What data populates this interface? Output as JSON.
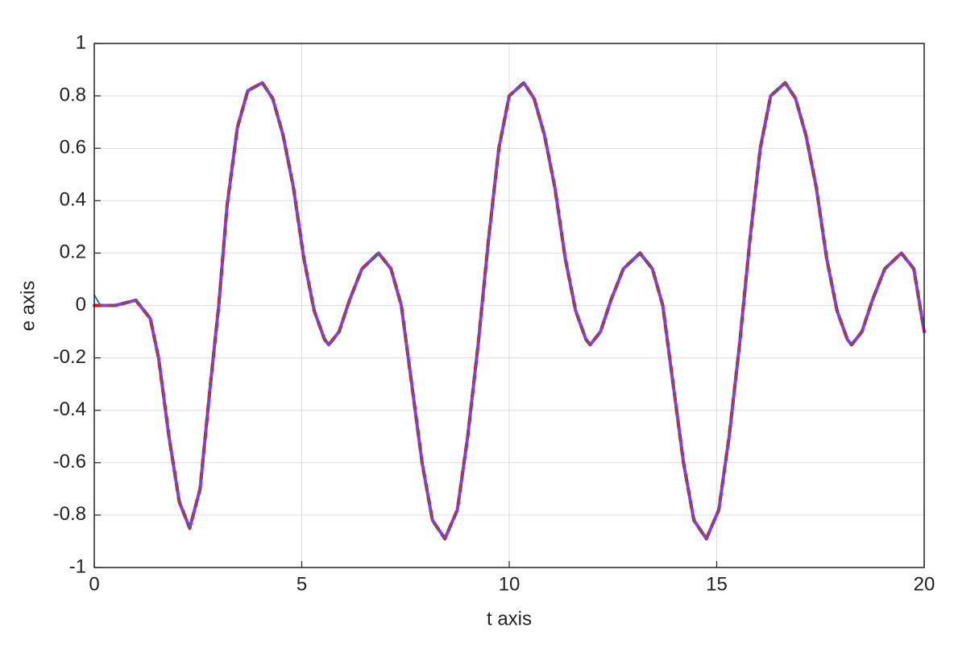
{
  "chart_data": {
    "type": "line",
    "xlabel": "t axis",
    "ylabel": "e axis",
    "x": [
      0,
      0.15,
      0.5,
      1.0,
      1.35,
      1.55,
      1.8,
      2.05,
      2.3,
      2.55,
      2.8,
      3.0,
      3.2,
      3.45,
      3.7,
      4.05,
      4.3,
      4.55,
      4.8,
      5.05,
      5.3,
      5.55,
      5.65,
      5.9,
      6.15,
      6.45,
      6.85,
      7.15,
      7.4,
      7.65,
      7.9,
      8.15,
      8.45,
      8.75,
      9.0,
      9.25,
      9.5,
      9.75,
      10.0,
      10.35,
      10.6,
      10.85,
      11.1,
      11.35,
      11.6,
      11.85,
      11.95,
      12.2,
      12.45,
      12.75,
      13.15,
      13.45,
      13.7,
      13.95,
      14.2,
      14.45,
      14.75,
      15.05,
      15.3,
      15.55,
      15.8,
      16.05,
      16.3,
      16.65,
      16.9,
      17.15,
      17.4,
      17.65,
      17.9,
      18.15,
      18.25,
      18.5,
      18.75,
      19.05,
      19.45,
      19.75,
      20
    ],
    "series": [
      {
        "color": "#ff00ff",
        "linestyle": "solid",
        "linewidth": 4,
        "values": [
          0,
          0,
          0,
          0.02,
          -0.05,
          -0.2,
          -0.5,
          -0.75,
          -0.85,
          -0.7,
          -0.3,
          0.0,
          0.38,
          0.68,
          0.82,
          0.85,
          0.79,
          0.65,
          0.45,
          0.18,
          -0.02,
          -0.13,
          -0.15,
          -0.1,
          0.02,
          0.14,
          0.2,
          0.14,
          0.0,
          -0.3,
          -0.6,
          -0.82,
          -0.89,
          -0.78,
          -0.5,
          -0.15,
          0.25,
          0.6,
          0.8,
          0.85,
          0.79,
          0.65,
          0.45,
          0.18,
          -0.02,
          -0.13,
          -0.15,
          -0.1,
          0.02,
          0.14,
          0.2,
          0.14,
          0.0,
          -0.3,
          -0.6,
          -0.82,
          -0.89,
          -0.78,
          -0.5,
          -0.15,
          0.25,
          0.6,
          0.8,
          0.85,
          0.79,
          0.65,
          0.45,
          0.18,
          -0.02,
          -0.13,
          -0.15,
          -0.1,
          0.02,
          0.14,
          0.2,
          0.14,
          -0.1
        ]
      },
      {
        "color": "#ff0000",
        "linestyle": "dashed",
        "linewidth": 4,
        "values": [
          0,
          0,
          0,
          0.02,
          -0.05,
          -0.2,
          -0.5,
          -0.75,
          -0.85,
          -0.7,
          -0.3,
          0.0,
          0.38,
          0.68,
          0.82,
          0.85,
          0.79,
          0.65,
          0.45,
          0.18,
          -0.02,
          -0.13,
          -0.15,
          -0.1,
          0.02,
          0.14,
          0.2,
          0.14,
          0.0,
          -0.3,
          -0.6,
          -0.82,
          -0.89,
          -0.78,
          -0.5,
          -0.15,
          0.25,
          0.6,
          0.8,
          0.85,
          0.79,
          0.65,
          0.45,
          0.18,
          -0.02,
          -0.13,
          -0.15,
          -0.1,
          0.02,
          0.14,
          0.2,
          0.14,
          0.0,
          -0.3,
          -0.6,
          -0.82,
          -0.89,
          -0.78,
          -0.5,
          -0.15,
          0.25,
          0.6,
          0.8,
          0.85,
          0.79,
          0.65,
          0.45,
          0.18,
          -0.02,
          -0.13,
          -0.15,
          -0.1,
          0.02,
          0.14,
          0.2,
          0.14,
          -0.1
        ]
      },
      {
        "color": "#1f77b4",
        "linestyle": "solid",
        "linewidth": 2,
        "values": [
          0.04,
          0,
          0,
          0.02,
          -0.05,
          -0.2,
          -0.5,
          -0.75,
          -0.85,
          -0.7,
          -0.3,
          0.0,
          0.38,
          0.68,
          0.82,
          0.85,
          0.79,
          0.65,
          0.45,
          0.18,
          -0.02,
          -0.13,
          -0.15,
          -0.1,
          0.02,
          0.14,
          0.2,
          0.14,
          0.0,
          -0.3,
          -0.6,
          -0.82,
          -0.89,
          -0.78,
          -0.5,
          -0.15,
          0.25,
          0.6,
          0.8,
          0.85,
          0.79,
          0.65,
          0.45,
          0.18,
          -0.02,
          -0.13,
          -0.15,
          -0.1,
          0.02,
          0.14,
          0.2,
          0.14,
          0.0,
          -0.3,
          -0.6,
          -0.82,
          -0.89,
          -0.78,
          -0.5,
          -0.15,
          0.25,
          0.6,
          0.8,
          0.85,
          0.79,
          0.65,
          0.45,
          0.18,
          -0.02,
          -0.13,
          -0.15,
          -0.1,
          0.02,
          0.14,
          0.2,
          0.14,
          -0.1
        ]
      }
    ],
    "xlim": [
      0,
      20
    ],
    "xticks": [
      0,
      5,
      10,
      15,
      20
    ],
    "ylim": [
      -1,
      1
    ],
    "yticks": [
      -1,
      -0.8,
      -0.6,
      -0.4,
      -0.2,
      0,
      0.2,
      0.4,
      0.6,
      0.8,
      1
    ],
    "grid": true
  }
}
